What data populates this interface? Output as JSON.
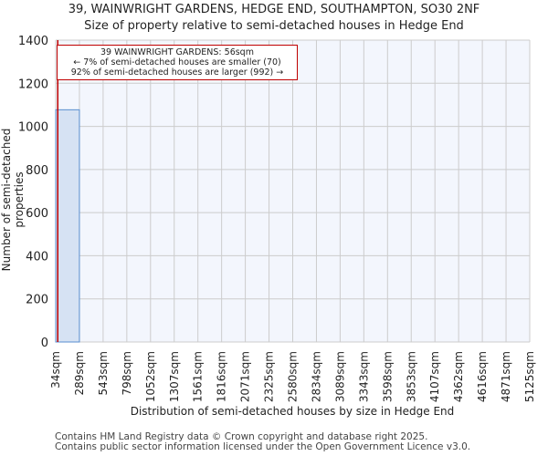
{
  "header": {
    "title": "39, WAINWRIGHT GARDENS, HEDGE END, SOUTHAMPTON, SO30 2NF",
    "subtitle": "Size of property relative to semi-detached houses in Hedge End"
  },
  "annotation": {
    "line1": "39 WAINWRIGHT GARDENS: 56sqm",
    "line2": "← 7% of semi-detached houses are smaller (70)",
    "line3": "92% of semi-detached houses are larger (992) →"
  },
  "footer": {
    "line1": "Contains HM Land Registry data © Crown copyright and database right 2025.",
    "line2": "Contains public sector information licensed under the Open Government Licence v3.0."
  },
  "colors": {
    "bar_fill": "#d6e2f3",
    "bar_edge": "#5a8fd0",
    "plot_bg": "#f3f6fd",
    "grid": "#cccccc",
    "marker": "#c00000"
  },
  "chart_data": {
    "type": "bar",
    "title": "39, WAINWRIGHT GARDENS, HEDGE END, SOUTHAMPTON, SO30 2NF",
    "subtitle": "Size of property relative to semi-detached houses in Hedge End",
    "xlabel": "Distribution of semi-detached houses by size in Hedge End",
    "ylabel": "Number of semi-detached properties",
    "categories": [
      "34sqm",
      "289sqm",
      "543sqm",
      "798sqm",
      "1052sqm",
      "1307sqm",
      "1561sqm",
      "1816sqm",
      "2071sqm",
      "2325sqm",
      "2580sqm",
      "2834sqm",
      "3089sqm",
      "3343sqm",
      "3598sqm",
      "3853sqm",
      "4107sqm",
      "4362sqm",
      "4616sqm",
      "4871sqm",
      "5125sqm"
    ],
    "bin_edges": [
      34,
      289,
      543,
      798,
      1052,
      1307,
      1561,
      1816,
      2071,
      2325,
      2580,
      2834,
      3089,
      3343,
      3598,
      3853,
      4107,
      4362,
      4616,
      4871,
      5125
    ],
    "values": [
      1077,
      0,
      0,
      0,
      0,
      0,
      0,
      0,
      0,
      0,
      0,
      0,
      0,
      0,
      0,
      0,
      0,
      0,
      0,
      0
    ],
    "ylim": [
      0,
      1400
    ],
    "yticks": [
      0,
      200,
      400,
      600,
      800,
      1000,
      1200,
      1400
    ],
    "grid": true,
    "marker": {
      "value": 56,
      "label": "39 WAINWRIGHT GARDENS: 56sqm"
    },
    "annotations": [
      "39 WAINWRIGHT GARDENS: 56sqm",
      "← 7% of semi-detached houses are smaller (70)",
      "92% of semi-detached houses are larger (992) →"
    ]
  }
}
